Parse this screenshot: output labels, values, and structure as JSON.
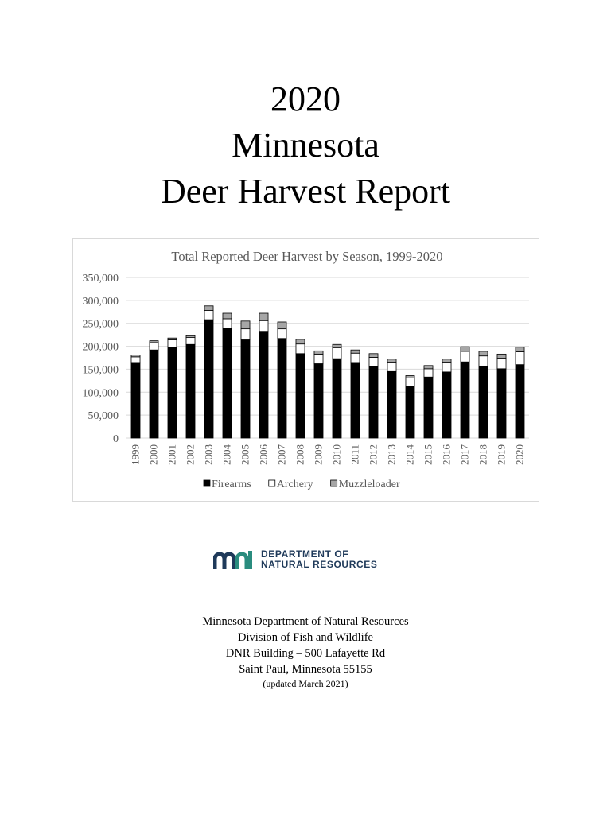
{
  "title": {
    "lines": [
      "2020",
      "Minnesota",
      "Deer Harvest Report"
    ]
  },
  "chart_data": {
    "type": "bar",
    "stacked": true,
    "title": "Total Reported Deer Harvest by Season, 1999-2020",
    "categories": [
      "1999",
      "2000",
      "2001",
      "2002",
      "2003",
      "2004",
      "2005",
      "2006",
      "2007",
      "2008",
      "2009",
      "2010",
      "2011",
      "2012",
      "2013",
      "2014",
      "2015",
      "2016",
      "2017",
      "2018",
      "2019",
      "2020"
    ],
    "series": [
      {
        "name": "Firearms",
        "color": "#000000",
        "values": [
          163000,
          192000,
          198000,
          204000,
          258000,
          240000,
          214000,
          231000,
          217000,
          184000,
          162000,
          173000,
          163000,
          156000,
          145000,
          113000,
          133000,
          144000,
          166000,
          157000,
          151000,
          160000
        ]
      },
      {
        "name": "Archery",
        "color": "#ffffff",
        "values": [
          14000,
          16000,
          16000,
          15000,
          20000,
          20000,
          24000,
          25000,
          21000,
          21000,
          21000,
          24000,
          22000,
          20000,
          19000,
          18000,
          18000,
          20000,
          23000,
          22000,
          23000,
          28000
        ]
      },
      {
        "name": "Muzzleloader",
        "color": "#a6a6a6",
        "values": [
          4000,
          4000,
          4000,
          4000,
          10000,
          12000,
          17000,
          16000,
          15000,
          10000,
          7000,
          7000,
          7000,
          8000,
          8000,
          5000,
          7000,
          8000,
          10000,
          10000,
          9000,
          10000
        ]
      }
    ],
    "ylim": [
      0,
      350000
    ],
    "yticks": [
      "350,000",
      "300,000",
      "250,000",
      "200,000",
      "150,000",
      "100,000",
      "50,000",
      "0"
    ],
    "grid": true,
    "legend": "bottom"
  },
  "logo": {
    "line1": "DEPARTMENT OF",
    "line2": "NATURAL RESOURCES",
    "colors": {
      "m": "#1f3a5a",
      "n": "#2a8c7e"
    }
  },
  "address": {
    "line1": "Minnesota Department of Natural Resources",
    "line2": "Division of Fish and Wildlife",
    "line3": "DNR Building – 500 Lafayette Rd",
    "line4": "Saint Paul, Minnesota 55155",
    "note": "(updated March 2021)"
  }
}
